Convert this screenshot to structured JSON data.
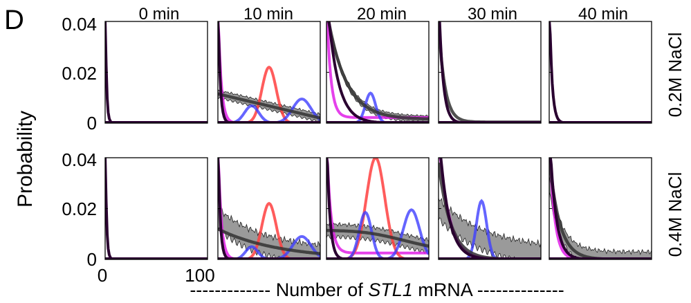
{
  "figure": {
    "panel_letter": "D",
    "ylabel": "Probability",
    "xlabel_left": "------------- Number of ",
    "xlabel_gene": "STL1",
    "xlabel_right": " mRNA --------------",
    "column_titles": [
      "0 min",
      "10 min",
      "20 min",
      "30 min",
      "40 min"
    ],
    "row_labels": [
      "0.2M NaCl",
      "0.4M NaCl"
    ],
    "y_ticks": [
      "0.04",
      "0.02",
      "0"
    ],
    "x_ticks": [
      "0",
      "100"
    ]
  },
  "colors": {
    "red": "#ff4040",
    "blue": "#3f3fff",
    "magenta": "#e020e8",
    "black_model": "#333333",
    "band_fill": "#9a9a9a",
    "dark_spike": "#2a0030"
  },
  "chart_data": {
    "type": "line",
    "description_units": "x = number of STL1 mRNA per cell, y = probability",
    "xlim": [
      0,
      100
    ],
    "ylim": [
      0,
      0.04
    ],
    "grid": false,
    "panels": [
      {
        "row": 0,
        "col": 0,
        "condition": "0.2M NaCl",
        "time": "0 min",
        "spike_decay": 1.2,
        "black_tail": null,
        "band": null,
        "magenta": null,
        "red": null,
        "blue": []
      },
      {
        "row": 0,
        "col": 1,
        "condition": "0.2M NaCl",
        "time": "10 min",
        "spike_decay": 2.0,
        "black_tail": {
          "kind": "flat",
          "y0": 0.0115,
          "slope": -9.5e-05
        },
        "band": {
          "center_y0": 0.0115,
          "slope": -9.5e-05,
          "halfwidth": 0.0015
        },
        "magenta": {
          "decay": 3.0,
          "floor": 0.0
        },
        "red": {
          "mu": 50,
          "sigma": 7,
          "peak": 0.022
        },
        "blue": [
          {
            "mu": 33,
            "sigma": 7,
            "peak": 0.0068
          },
          {
            "mu": 82,
            "sigma": 9,
            "peak": 0.0095
          }
        ]
      },
      {
        "row": 0,
        "col": 2,
        "condition": "0.2M NaCl",
        "time": "20 min",
        "spike_decay": 10.0,
        "black_tail": {
          "kind": "decay",
          "y0": 0.045,
          "tau": 18,
          "floor": 0.0015
        },
        "band": {
          "center_y0": 0.045,
          "tau": 18,
          "floor": 0.0015,
          "halfwidth": 0.0012
        },
        "magenta": {
          "decay": 4.0,
          "floor": 0.0022
        },
        "red": null,
        "blue": [
          {
            "mu": 43,
            "sigma": 5,
            "peak": 0.0118
          }
        ]
      },
      {
        "row": 0,
        "col": 3,
        "condition": "0.2M NaCl",
        "time": "30 min",
        "spike_decay": 4.0,
        "black_tail": {
          "kind": "decay",
          "y0": 0.04,
          "tau": 6,
          "floor": 0.0004
        },
        "band": null,
        "magenta": null,
        "red": null,
        "blue": []
      },
      {
        "row": 0,
        "col": 4,
        "condition": "0.2M NaCl",
        "time": "40 min",
        "spike_decay": 2.5,
        "black_tail": null,
        "band": null,
        "magenta": null,
        "red": null,
        "blue": []
      },
      {
        "row": 1,
        "col": 0,
        "condition": "0.4M NaCl",
        "time": "0 min",
        "spike_decay": 1.2,
        "black_tail": null,
        "band": null,
        "magenta": null,
        "red": null,
        "blue": []
      },
      {
        "row": 1,
        "col": 1,
        "condition": "0.4M NaCl",
        "time": "10 min",
        "spike_decay": 2.0,
        "black_tail": {
          "kind": "decay",
          "y0": 0.012,
          "tau": 60,
          "floor": 0.0
        },
        "band": {
          "center_y0": 0.016,
          "tau": 45,
          "floor": 0.0,
          "halfwidth": 0.004
        },
        "magenta": {
          "decay": 3.0,
          "floor": 0.0
        },
        "red": {
          "mu": 50,
          "sigma": 7,
          "peak": 0.022
        },
        "blue": [
          {
            "mu": 33,
            "sigma": 6,
            "peak": 0.005
          },
          {
            "mu": 82,
            "sigma": 9,
            "peak": 0.009
          }
        ]
      },
      {
        "row": 1,
        "col": 2,
        "condition": "0.4M NaCl",
        "time": "20 min",
        "spike_decay": 3.0,
        "black_tail": {
          "kind": "hump",
          "y0": 0.009,
          "mu": 40,
          "sigma": 40,
          "peak": 0.013
        },
        "band": {
          "kind": "hump",
          "y0": 0.009,
          "mu": 40,
          "sigma": 40,
          "peak": 0.013,
          "halfwidth": 0.0025
        },
        "magenta": {
          "decay": 4.0,
          "floor": 0.0025
        },
        "red": {
          "mu": 48,
          "sigma": 9,
          "peak": 0.04
        },
        "blue": [
          {
            "mu": 38,
            "sigma": 6,
            "peak": 0.0185
          },
          {
            "mu": 83,
            "sigma": 8,
            "peak": 0.0195
          }
        ]
      },
      {
        "row": 1,
        "col": 3,
        "condition": "0.4M NaCl",
        "time": "30 min",
        "spike_decay": 9.0,
        "black_tail": {
          "kind": "decay",
          "y0": 0.038,
          "tau": 12,
          "floor": 0.0
        },
        "band": {
          "center_y0": 0.02,
          "tau": 45,
          "floor": 0.0,
          "halfwidth": 0.004
        },
        "magenta": {
          "decay": 10.0,
          "floor": 0.0
        },
        "red": null,
        "blue": [
          {
            "mu": 42,
            "sigma": 5,
            "peak": 0.023
          }
        ]
      },
      {
        "row": 1,
        "col": 4,
        "condition": "0.4M NaCl",
        "time": "40 min",
        "spike_decay": 6.0,
        "black_tail": {
          "kind": "decay",
          "y0": 0.04,
          "tau": 10,
          "floor": 0.0
        },
        "band": {
          "center_y0": 0.03,
          "tau": 12,
          "floor": 0.0,
          "halfwidth": 0.003
        },
        "magenta": {
          "decay": 5.0,
          "floor": 0.0
        },
        "red": null,
        "blue": []
      }
    ]
  }
}
